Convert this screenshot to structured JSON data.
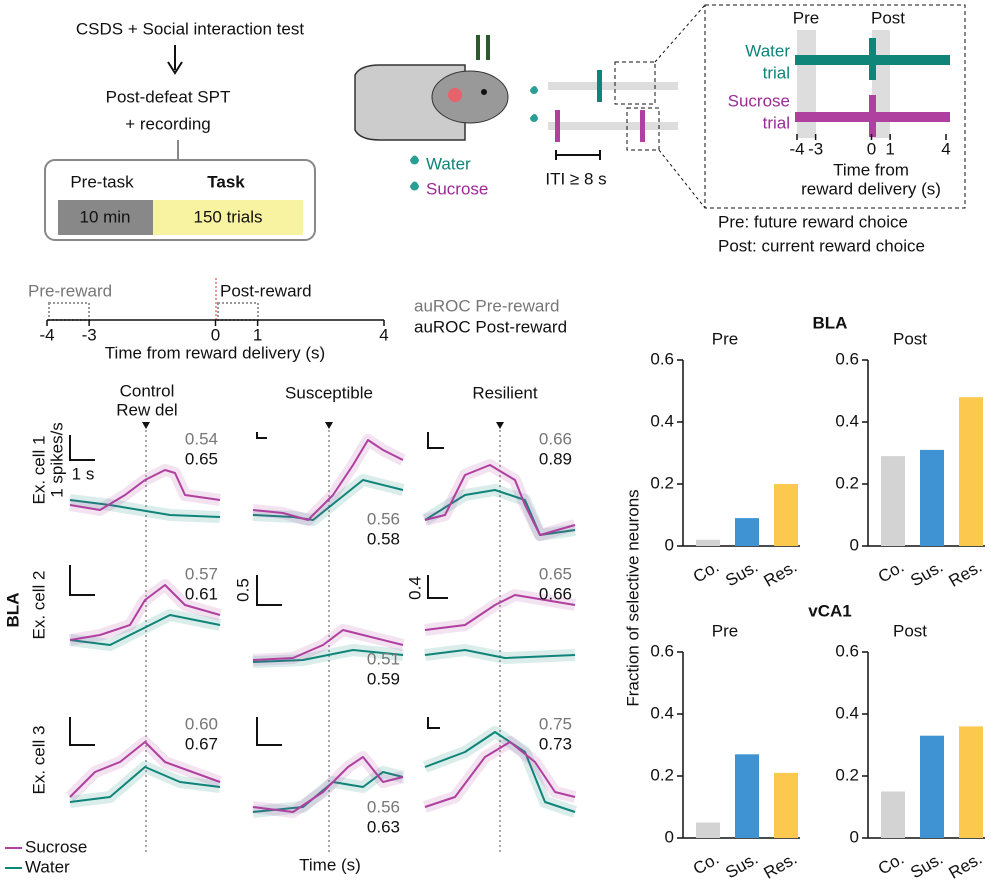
{
  "protocol": {
    "title": "CSDS + Social interaction test",
    "step": "Post-defeat SPT",
    "step2": "+ recording",
    "pre_task": "Pre-task",
    "task": "Task",
    "pre_duration": "10 min",
    "task_trials": "150 trials"
  },
  "setup": {
    "water": "Water",
    "sucrose": "Sucrose",
    "iti": "ITI ≥ 8 s"
  },
  "inset": {
    "pre": "Pre",
    "post": "Post",
    "water_trial": [
      "Water",
      "trial"
    ],
    "sucrose_trial": [
      "Sucrose",
      "trial"
    ],
    "xlim": [
      -4,
      4
    ],
    "xticks": [
      -4,
      -3,
      0,
      1,
      4
    ],
    "xlabel": [
      "Time from",
      "reward delivery (s)"
    ],
    "notes": [
      "Pre: future reward choice",
      "Post: current reward choice"
    ]
  },
  "timeline": {
    "pre_label": "Pre-reward",
    "post_label": "Post-reward",
    "xlim": [
      -4,
      4
    ],
    "xticks": [
      -4,
      -3,
      0,
      1,
      4
    ],
    "xlabel": "Time from reward delivery (s)",
    "legend": [
      "auROC Pre-reward",
      "auROC Post-reward"
    ]
  },
  "traces": {
    "region": "BLA",
    "groups": [
      "Control",
      "Susceptible",
      "Resilient"
    ],
    "reward_marker": "Rew del",
    "cells": [
      "Ex. cell 1",
      "Ex. cell 2",
      "Ex. cell 3"
    ],
    "scale": {
      "rate": "1 spikes/s",
      "time": "1 s",
      "row2_sus": "0.5",
      "row2_res": "0.4"
    },
    "auroc": [
      [
        [
          "0.54",
          "0.65"
        ],
        [
          "0.56",
          "0.58"
        ],
        [
          "0.66",
          "0.89"
        ]
      ],
      [
        [
          "0.57",
          "0.61"
        ],
        [
          "0.51",
          "0.59"
        ],
        [
          "0.65",
          "0.66"
        ]
      ],
      [
        [
          "0.60",
          "0.67"
        ],
        [
          "0.56",
          "0.63"
        ],
        [
          "0.75",
          "0.73"
        ]
      ]
    ],
    "legend": [
      "Sucrose",
      "Water"
    ],
    "xlabel": "Time (s)"
  },
  "bar_panel": {
    "ylabel": "Fraction of selective neurons",
    "regions": [
      "BLA",
      "vCA1"
    ]
  },
  "chart_data": [
    {
      "type": "bar",
      "title": "Pre",
      "categories": [
        "Co.",
        "Sus.",
        "Res."
      ],
      "values": [
        0.02,
        0.09,
        0.2
      ],
      "colors": [
        "#d3d3d3",
        "#3f93d2",
        "#fdc84e"
      ],
      "ylim": [
        0,
        0.6
      ],
      "yticks": [
        0,
        0.2,
        0.4,
        0.6
      ]
    },
    {
      "type": "bar",
      "title": "Post",
      "categories": [
        "Co.",
        "Sus.",
        "Res."
      ],
      "values": [
        0.29,
        0.31,
        0.48
      ],
      "colors": [
        "#d3d3d3",
        "#3f93d2",
        "#fdc84e"
      ],
      "ylim": [
        0,
        0.6
      ],
      "yticks": [
        0,
        0.2,
        0.4,
        0.6
      ]
    },
    {
      "type": "bar",
      "title": "Pre",
      "categories": [
        "Co.",
        "Sus.",
        "Res."
      ],
      "values": [
        0.05,
        0.27,
        0.21
      ],
      "colors": [
        "#d3d3d3",
        "#3f93d2",
        "#fdc84e"
      ],
      "ylim": [
        0,
        0.6
      ],
      "yticks": [
        0,
        0.2,
        0.4,
        0.6
      ]
    },
    {
      "type": "bar",
      "title": "Post",
      "categories": [
        "Co.",
        "Sus.",
        "Res."
      ],
      "values": [
        0.15,
        0.33,
        0.36
      ],
      "colors": [
        "#d3d3d3",
        "#3f93d2",
        "#fdc84e"
      ],
      "ylim": [
        0,
        0.6
      ],
      "yticks": [
        0,
        0.2,
        0.4,
        0.6
      ]
    }
  ]
}
